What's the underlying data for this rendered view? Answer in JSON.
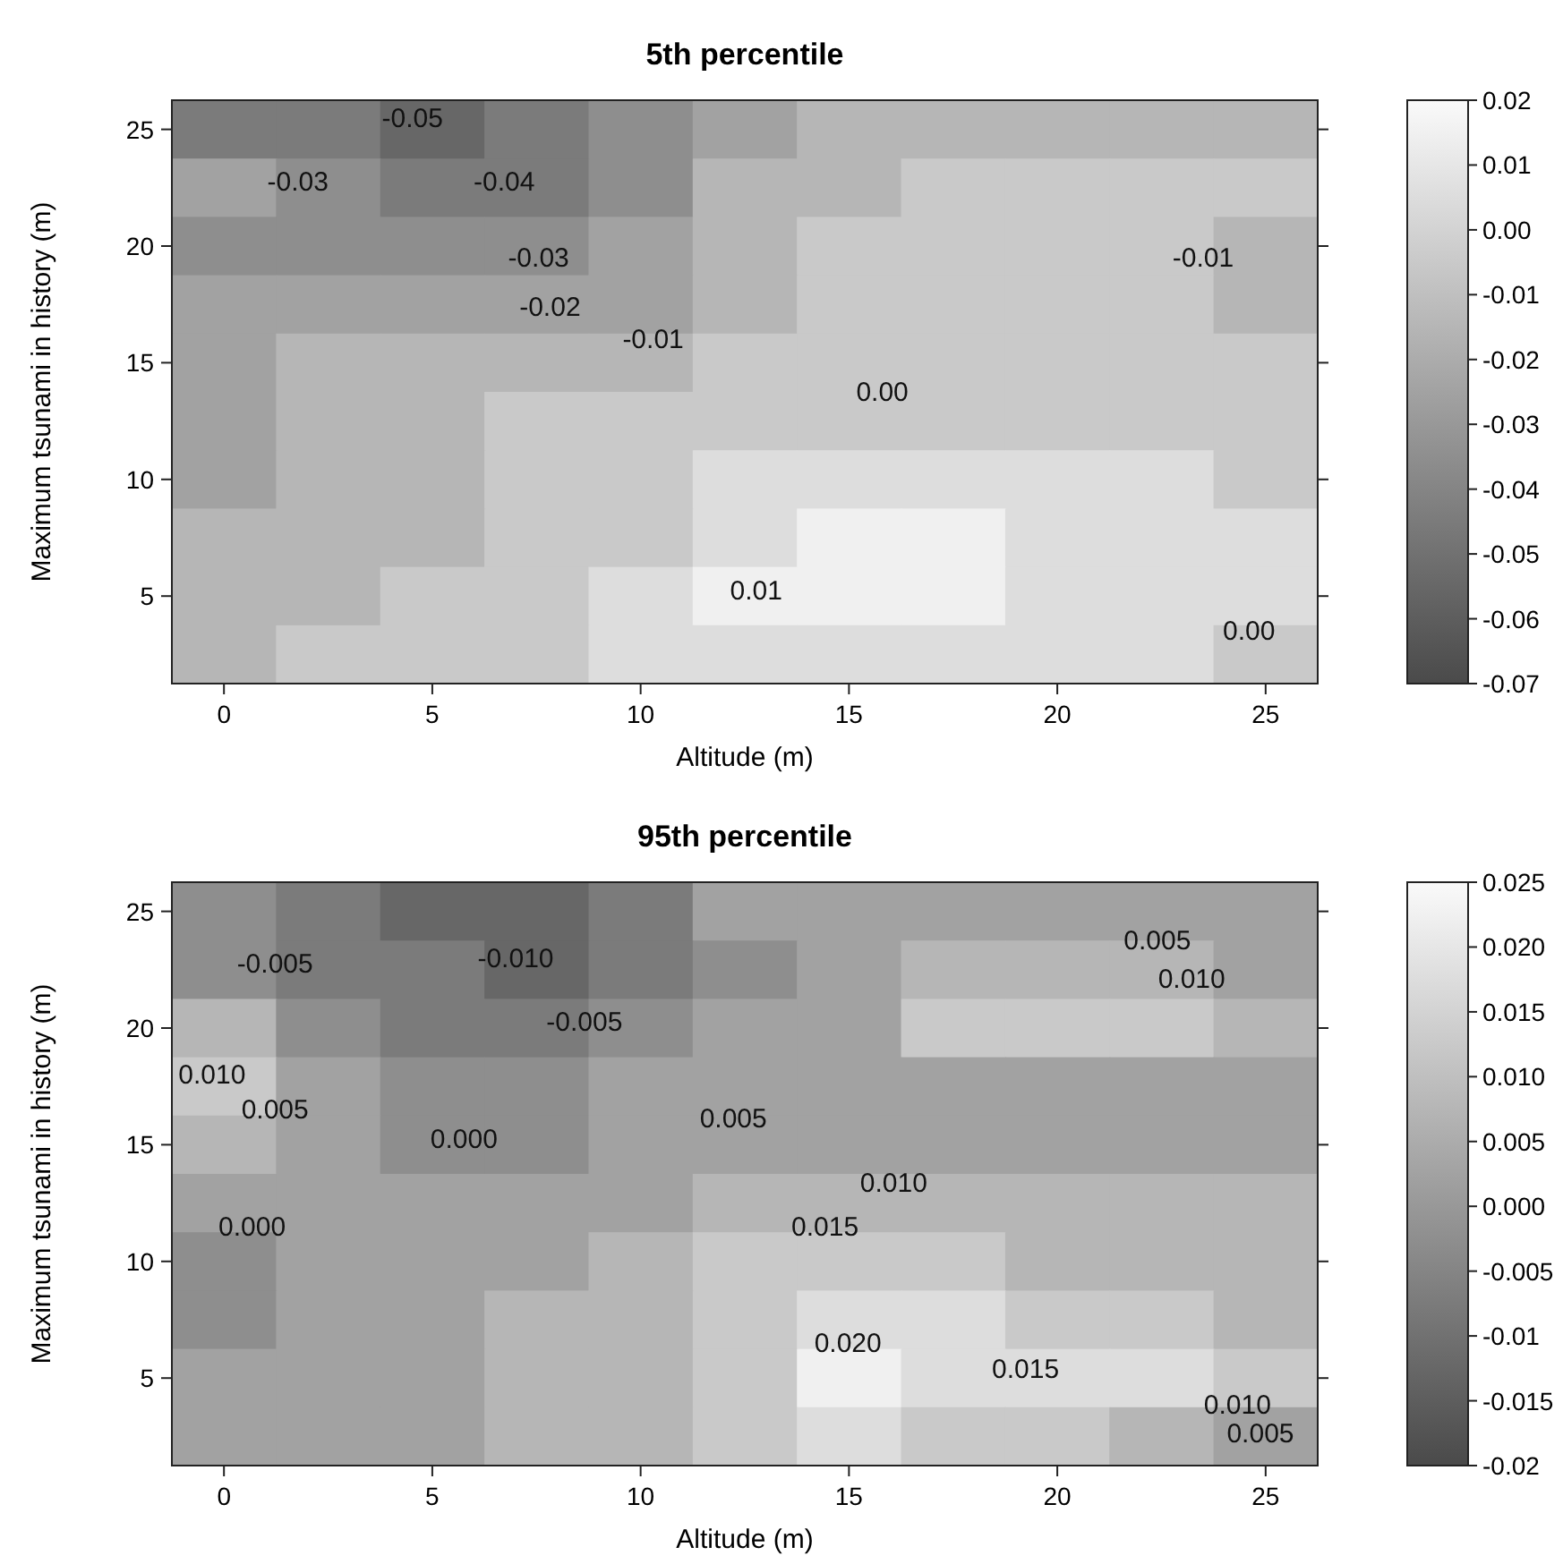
{
  "chart_data": [
    {
      "type": "heatmap",
      "title": "5th percentile",
      "xlabel": "Altitude (m)",
      "ylabel": "Maximum tsunami in history (m)",
      "categories": [
        "0",
        null,
        "5",
        null,
        "10",
        null,
        "15",
        null,
        "20",
        null,
        "25"
      ],
      "y_categories": [
        "25",
        null,
        "20",
        null,
        "15",
        null,
        "10",
        null,
        "5",
        null
      ],
      "clim": [
        -0.07,
        0.02
      ],
      "cticks": [
        -0.07,
        -0.06,
        -0.05,
        -0.04,
        -0.03,
        -0.02,
        -0.01,
        {
          "value": 0,
          "label": "0.00"
        },
        0.01,
        0.02
      ],
      "cells": [
        [
          -0.045,
          -0.045,
          -0.055,
          -0.045,
          -0.035,
          -0.025,
          -0.015,
          -0.015,
          -0.015,
          -0.015,
          -0.015
        ],
        [
          -0.025,
          -0.035,
          -0.045,
          -0.045,
          -0.035,
          -0.015,
          -0.015,
          -0.005,
          -0.005,
          -0.005,
          -0.005
        ],
        [
          -0.035,
          -0.035,
          -0.035,
          -0.035,
          -0.025,
          -0.015,
          -0.005,
          -0.005,
          -0.005,
          -0.005,
          -0.015
        ],
        [
          -0.025,
          -0.025,
          -0.025,
          -0.025,
          -0.025,
          -0.015,
          -0.005,
          -0.005,
          -0.005,
          -0.005,
          -0.015
        ],
        [
          -0.025,
          -0.015,
          -0.015,
          -0.015,
          -0.015,
          -0.005,
          -0.005,
          -0.005,
          -0.005,
          -0.005,
          -0.005
        ],
        [
          -0.025,
          -0.015,
          -0.015,
          -0.005,
          -0.005,
          -0.005,
          -0.005,
          -0.005,
          -0.005,
          -0.005,
          -0.005
        ],
        [
          -0.025,
          -0.015,
          -0.015,
          -0.005,
          -0.005,
          0.005,
          0.005,
          0.005,
          0.005,
          0.005,
          -0.005
        ],
        [
          -0.015,
          -0.015,
          -0.015,
          -0.005,
          -0.005,
          0.005,
          0.015,
          0.015,
          0.005,
          0.005,
          0.005
        ],
        [
          -0.015,
          -0.015,
          -0.005,
          -0.005,
          0.005,
          0.015,
          0.015,
          0.015,
          0.005,
          0.005,
          0.005
        ],
        [
          -0.015,
          -0.005,
          -0.005,
          -0.005,
          0.005,
          0.005,
          0.005,
          0.005,
          0.005,
          0.005,
          -0.005
        ]
      ],
      "annotations": [
        "-0.05",
        "-0.03",
        "-0.04",
        "-0.03",
        "-0.02",
        "-0.01",
        "0.00",
        "-0.01",
        "0.01",
        "0.00"
      ]
    },
    {
      "type": "heatmap",
      "title": "95th percentile",
      "xlabel": "Altitude (m)",
      "ylabel": "Maximum tsunami in history (m)",
      "categories": [
        "0",
        null,
        "5",
        null,
        "10",
        null,
        "15",
        null,
        "20",
        null,
        "25"
      ],
      "y_categories": [
        "25",
        null,
        "20",
        null,
        "15",
        null,
        "10",
        null,
        "5",
        null
      ],
      "clim": [
        -0.02,
        0.025
      ],
      "cticks": [
        -0.02,
        -0.015,
        -0.01,
        -0.005,
        {
          "value": 0,
          "label": "0.000"
        },
        0.005,
        {
          "value": 0.01,
          "label": "0.010"
        },
        0.015,
        {
          "value": 0.02,
          "label": "0.020"
        },
        0.025
      ],
      "cells": [
        [
          -0.0025,
          -0.0075,
          -0.0125,
          -0.0125,
          -0.0075,
          0.0025,
          0.0025,
          0.0025,
          0.0025,
          0.0025,
          0.0025
        ],
        [
          -0.0025,
          -0.0075,
          -0.0075,
          -0.0125,
          -0.0075,
          -0.0025,
          0.0025,
          0.0075,
          0.0075,
          0.0075,
          0.0025
        ],
        [
          0.0075,
          -0.0025,
          -0.0075,
          -0.0075,
          -0.0025,
          0.0025,
          0.0025,
          0.0125,
          0.0125,
          0.0125,
          0.0075
        ],
        [
          0.0125,
          0.0025,
          -0.0025,
          -0.0025,
          0.0025,
          0.0025,
          0.0025,
          0.0025,
          0.0025,
          0.0025,
          0.0025
        ],
        [
          0.0075,
          0.0025,
          -0.0025,
          -0.0025,
          0.0025,
          0.0025,
          0.0025,
          0.0025,
          0.0025,
          0.0025,
          0.0025
        ],
        [
          0.0025,
          0.0025,
          0.0025,
          0.0025,
          0.0025,
          0.0075,
          0.0075,
          0.0075,
          0.0075,
          0.0075,
          0.0075
        ],
        [
          -0.0025,
          0.0025,
          0.0025,
          0.0025,
          0.0075,
          0.0125,
          0.0125,
          0.0125,
          0.0075,
          0.0075,
          0.0075
        ],
        [
          -0.0025,
          0.0025,
          0.0025,
          0.0075,
          0.0075,
          0.0125,
          0.0175,
          0.0175,
          0.0125,
          0.0125,
          0.0075
        ],
        [
          0.0025,
          0.0025,
          0.0025,
          0.0075,
          0.0075,
          0.0125,
          0.0225,
          0.0175,
          0.0175,
          0.0175,
          0.0125
        ],
        [
          0.0025,
          0.0025,
          0.0025,
          0.0075,
          0.0075,
          0.0125,
          0.0175,
          0.0125,
          0.0125,
          0.0075,
          0.0025
        ]
      ],
      "annotations": [
        "-0.005",
        "-0.010",
        "-0.005",
        "0.010",
        "0.005",
        "0.000",
        "0.005",
        "0.010",
        "0.015",
        "0.000",
        "0.020",
        "0.015",
        "0.010",
        "0.005",
        "0.005",
        "0.010"
      ]
    }
  ]
}
